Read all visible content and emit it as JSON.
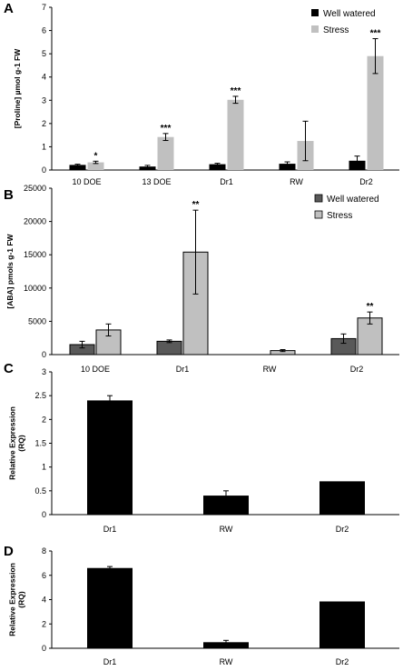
{
  "chart_data": [
    {
      "panel": "A",
      "type": "bar",
      "ylabel": "[Proline] µmol g-1 FW",
      "categories": [
        "10 DOE",
        "13 DOE",
        "Dr1",
        "RW",
        "Dr2"
      ],
      "ylim": [
        0,
        7
      ],
      "yticks": [
        "0",
        "1",
        "2",
        "3",
        "4",
        "5",
        "6",
        "7"
      ],
      "legend_position": "top-right",
      "series": [
        {
          "name": "Well watered",
          "color": "#000000",
          "values": [
            0.22,
            0.15,
            0.25,
            0.27,
            0.4
          ],
          "errors": [
            0.03,
            0.05,
            0.04,
            0.08,
            0.2
          ]
        },
        {
          "name": "Stress",
          "color": "#c0c0c0",
          "values": [
            0.33,
            1.42,
            3.02,
            1.25,
            4.9
          ],
          "errors": [
            0.05,
            0.15,
            0.15,
            0.85,
            0.75
          ]
        }
      ],
      "annotations": [
        {
          "category": "10 DOE",
          "series": "Stress",
          "text": "*"
        },
        {
          "category": "13 DOE",
          "series": "Stress",
          "text": "***"
        },
        {
          "category": "Dr1",
          "series": "Stress",
          "text": "***"
        },
        {
          "category": "Dr2",
          "series": "Stress",
          "text": "***"
        }
      ]
    },
    {
      "panel": "B",
      "type": "bar",
      "ylabel": "[ABA] pmols g-1 FW",
      "categories": [
        "10 DOE",
        "Dr1",
        "RW",
        "Dr2"
      ],
      "ylim": [
        0,
        25000
      ],
      "yticks": [
        "0",
        "5000",
        "10000",
        "15000",
        "20000",
        "25000"
      ],
      "legend_position": "top-right",
      "series": [
        {
          "name": "Well watered",
          "color": "#595959",
          "values": [
            1500,
            2000,
            null,
            2400
          ],
          "errors": [
            500,
            200,
            null,
            700
          ]
        },
        {
          "name": "Stress",
          "color": "#c0c0c0",
          "values": [
            3700,
            15400,
            600,
            5500
          ],
          "errors": [
            900,
            6300,
            150,
            900
          ]
        }
      ],
      "annotations": [
        {
          "category": "Dr1",
          "series": "Stress",
          "text": "**"
        },
        {
          "category": "Dr2",
          "series": "Stress",
          "text": "**"
        }
      ]
    },
    {
      "panel": "C",
      "type": "bar",
      "ylabel": "Relative Expression (RQ)",
      "categories": [
        "Dr1",
        "RW",
        "Dr2"
      ],
      "ylim": [
        0,
        3
      ],
      "yticks": [
        "0",
        "0.5",
        "1",
        "1.5",
        "2",
        "2.5",
        "3"
      ],
      "series": [
        {
          "color": "#000000",
          "values": [
            2.4,
            0.4,
            0.7
          ],
          "errors": [
            0.1,
            0.1,
            0
          ]
        }
      ]
    },
    {
      "panel": "D",
      "type": "bar",
      "ylabel": "Relative Expression (RQ)",
      "categories": [
        "Dr1",
        "RW",
        "Dr2"
      ],
      "ylim": [
        0,
        8
      ],
      "yticks": [
        "0",
        "2",
        "4",
        "6",
        "8"
      ],
      "series": [
        {
          "color": "#000000",
          "values": [
            6.6,
            0.5,
            3.85
          ],
          "errors": [
            0.12,
            0.15,
            0
          ]
        }
      ]
    }
  ]
}
